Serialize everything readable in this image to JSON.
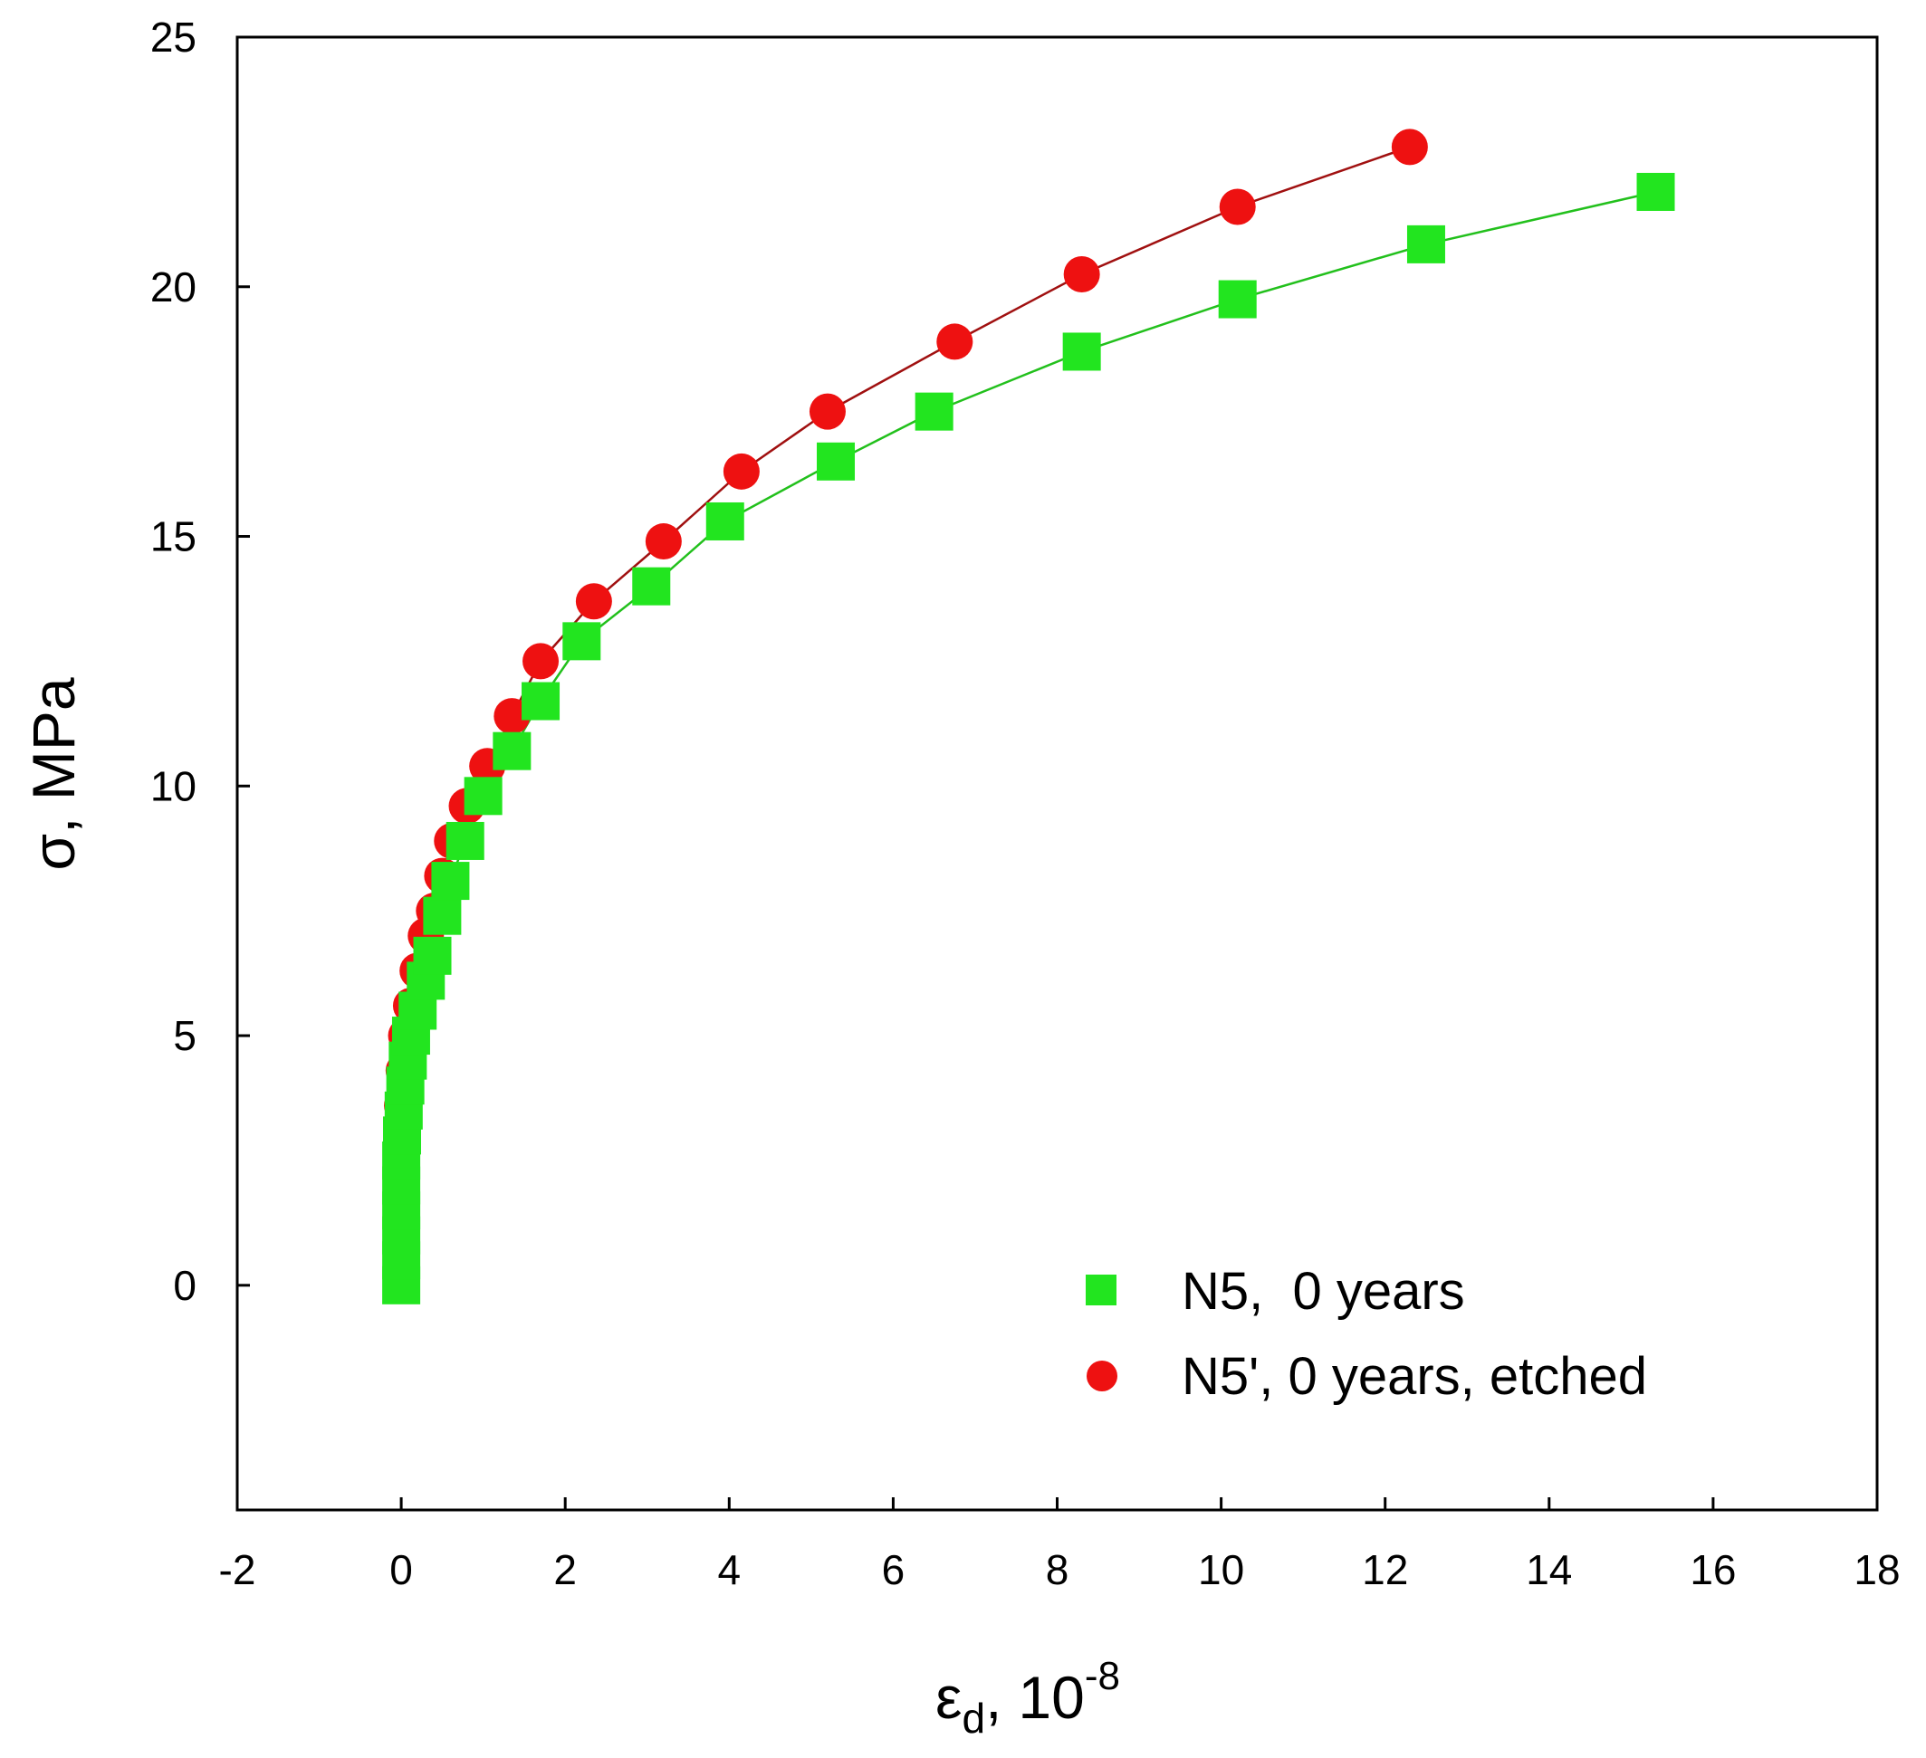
{
  "chart_data": {
    "type": "scatter",
    "title": "",
    "xlabel": {
      "symbol": "ε",
      "subscript": "d",
      "comma": ",",
      "base": "10",
      "exponent": "-8"
    },
    "ylabel": "σ, MPa",
    "xlim": [
      -2,
      18
    ],
    "ylim": [
      -4.5,
      25
    ],
    "xticks": [
      -2,
      0,
      2,
      4,
      6,
      8,
      10,
      12,
      14,
      16,
      18
    ],
    "yticks": [
      0,
      5,
      10,
      15,
      20,
      25
    ],
    "grid": false,
    "legend_position": "bottom-right",
    "series": [
      {
        "name": "N5,  0 years",
        "marker": "square",
        "color": "#22e51f",
        "line_color": "#22c01c",
        "points": [
          [
            0.0,
            0.0
          ],
          [
            0.0,
            0.5
          ],
          [
            0.0,
            1.0
          ],
          [
            0.0,
            1.5
          ],
          [
            0.0,
            2.0
          ],
          [
            0.0,
            2.5
          ],
          [
            0.01,
            3.0
          ],
          [
            0.03,
            3.5
          ],
          [
            0.05,
            4.0
          ],
          [
            0.08,
            4.5
          ],
          [
            0.12,
            5.0
          ],
          [
            0.2,
            5.5
          ],
          [
            0.3,
            6.1
          ],
          [
            0.38,
            6.6
          ],
          [
            0.5,
            7.4
          ],
          [
            0.6,
            8.1
          ],
          [
            0.78,
            8.9
          ],
          [
            1.0,
            9.8
          ],
          [
            1.35,
            10.7
          ],
          [
            1.7,
            11.7
          ],
          [
            2.2,
            12.9
          ],
          [
            3.05,
            14.0
          ],
          [
            3.95,
            15.3
          ],
          [
            5.3,
            16.5
          ],
          [
            6.5,
            17.5
          ],
          [
            8.3,
            18.7
          ],
          [
            10.2,
            19.75
          ],
          [
            12.5,
            20.85
          ],
          [
            15.3,
            21.9
          ]
        ]
      },
      {
        "name": "N5', 0 years, etched",
        "marker": "circle",
        "color": "#ee1111",
        "line_color": "#a01010",
        "points": [
          [
            0.0,
            0.0
          ],
          [
            0.0,
            0.6
          ],
          [
            0.0,
            1.2
          ],
          [
            0.0,
            1.8
          ],
          [
            0.0,
            2.4
          ],
          [
            0.0,
            3.0
          ],
          [
            0.01,
            3.6
          ],
          [
            0.03,
            4.3
          ],
          [
            0.06,
            5.0
          ],
          [
            0.12,
            5.6
          ],
          [
            0.2,
            6.3
          ],
          [
            0.3,
            7.0
          ],
          [
            0.4,
            7.5
          ],
          [
            0.5,
            8.2
          ],
          [
            0.62,
            8.9
          ],
          [
            0.8,
            9.6
          ],
          [
            1.05,
            10.4
          ],
          [
            1.35,
            11.4
          ],
          [
            1.7,
            12.5
          ],
          [
            2.35,
            13.7
          ],
          [
            3.2,
            14.9
          ],
          [
            4.15,
            16.3
          ],
          [
            5.2,
            17.5
          ],
          [
            6.75,
            18.9
          ],
          [
            8.3,
            20.25
          ],
          [
            10.2,
            21.6
          ],
          [
            12.3,
            22.8
          ]
        ]
      }
    ]
  }
}
